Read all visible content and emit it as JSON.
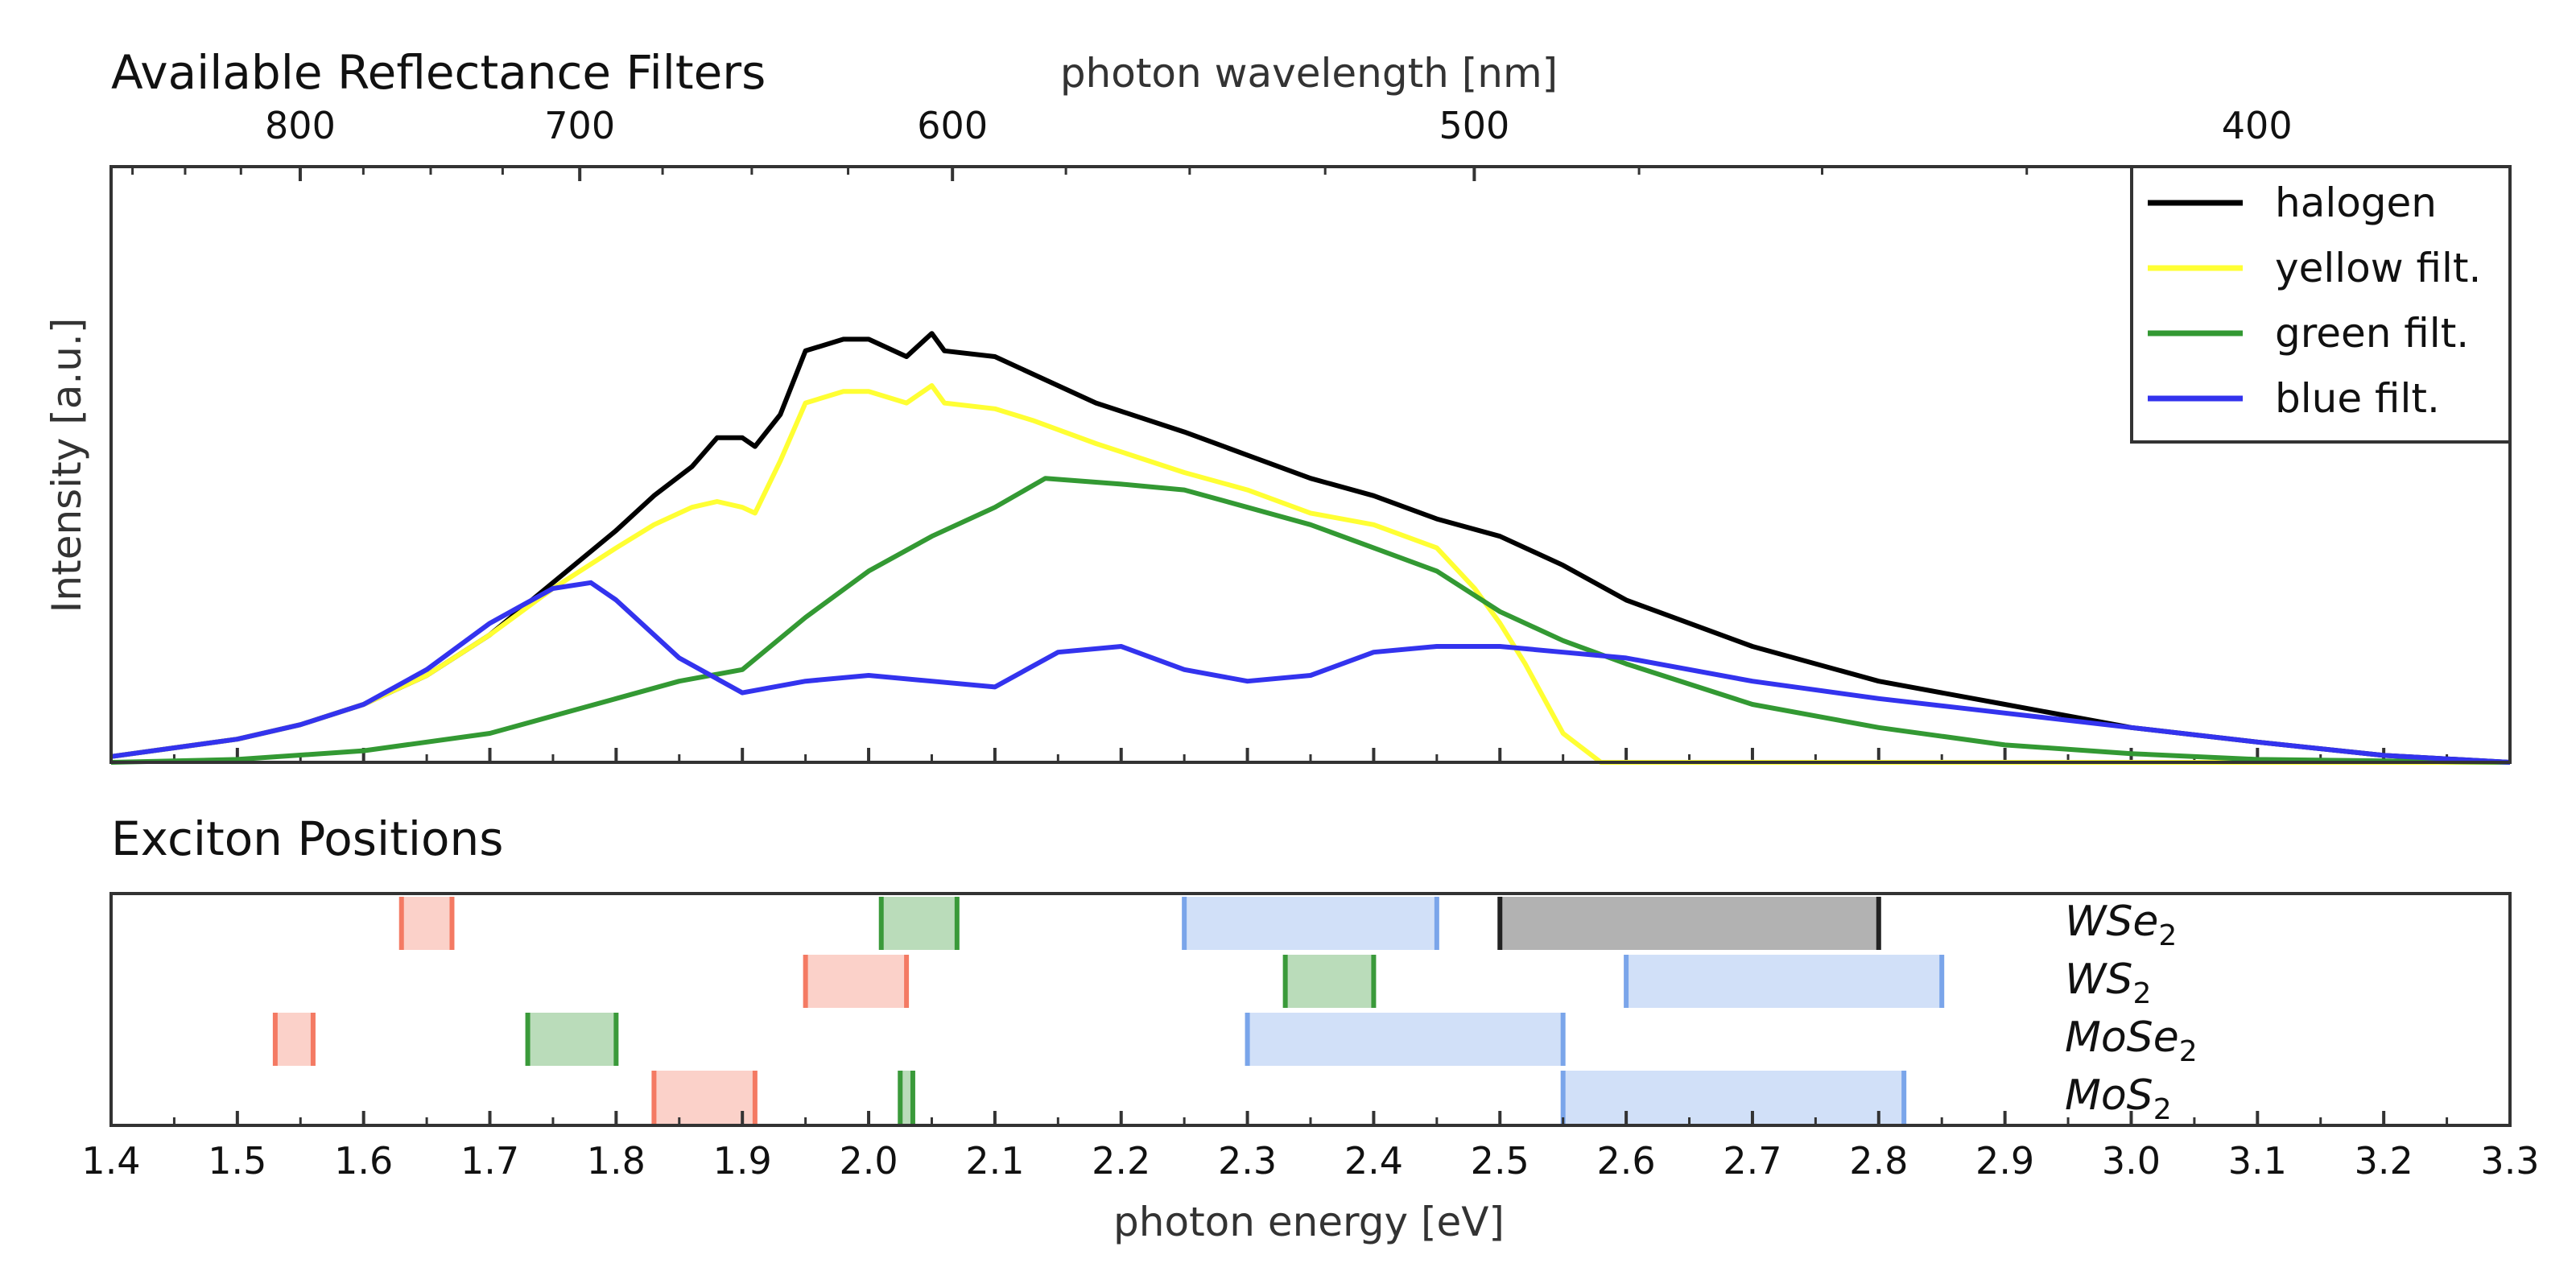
{
  "chart_data": [
    {
      "type": "line",
      "title": "Available Reflectance Filters",
      "xlabel": "photon energy [eV]",
      "ylabel": "Intensity [a.u.]",
      "top_xlabel": "photon wavelength [nm]",
      "top_ticks": [
        {
          "label": "800",
          "nm": 800
        },
        {
          "label": "700",
          "nm": 700
        },
        {
          "label": "600",
          "nm": 600
        },
        {
          "label": "500",
          "nm": 500
        },
        {
          "label": "400",
          "nm": 400
        }
      ],
      "xlim": [
        1.4,
        3.3
      ],
      "ylim": [
        0,
        1
      ],
      "legend_position": "top-right",
      "series": [
        {
          "name": "halogen",
          "color": "#000000",
          "points": [
            [
              1.4,
              0.01
            ],
            [
              1.45,
              0.025
            ],
            [
              1.5,
              0.04
            ],
            [
              1.55,
              0.065
            ],
            [
              1.6,
              0.1
            ],
            [
              1.65,
              0.15
            ],
            [
              1.7,
              0.22
            ],
            [
              1.75,
              0.31
            ],
            [
              1.8,
              0.4
            ],
            [
              1.83,
              0.46
            ],
            [
              1.86,
              0.51
            ],
            [
              1.88,
              0.56
            ],
            [
              1.9,
              0.56
            ],
            [
              1.91,
              0.545
            ],
            [
              1.93,
              0.6
            ],
            [
              1.95,
              0.71
            ],
            [
              1.98,
              0.73
            ],
            [
              2.0,
              0.73
            ],
            [
              2.03,
              0.7
            ],
            [
              2.05,
              0.74
            ],
            [
              2.06,
              0.71
            ],
            [
              2.1,
              0.7
            ],
            [
              2.13,
              0.67
            ],
            [
              2.18,
              0.62
            ],
            [
              2.25,
              0.57
            ],
            [
              2.3,
              0.53
            ],
            [
              2.35,
              0.49
            ],
            [
              2.4,
              0.46
            ],
            [
              2.45,
              0.42
            ],
            [
              2.5,
              0.39
            ],
            [
              2.55,
              0.34
            ],
            [
              2.6,
              0.28
            ],
            [
              2.7,
              0.2
            ],
            [
              2.8,
              0.14
            ],
            [
              2.9,
              0.1
            ],
            [
              3.0,
              0.06
            ],
            [
              3.1,
              0.035
            ],
            [
              3.2,
              0.012
            ],
            [
              3.3,
              0.0
            ]
          ]
        },
        {
          "name": "yellow filt.",
          "color": "#ffff33",
          "points": [
            [
              1.4,
              0.01
            ],
            [
              1.45,
              0.025
            ],
            [
              1.5,
              0.04
            ],
            [
              1.55,
              0.065
            ],
            [
              1.6,
              0.1
            ],
            [
              1.65,
              0.15
            ],
            [
              1.7,
              0.22
            ],
            [
              1.75,
              0.3
            ],
            [
              1.8,
              0.37
            ],
            [
              1.83,
              0.41
            ],
            [
              1.86,
              0.44
            ],
            [
              1.88,
              0.45
            ],
            [
              1.9,
              0.44
            ],
            [
              1.91,
              0.43
            ],
            [
              1.93,
              0.52
            ],
            [
              1.95,
              0.62
            ],
            [
              1.98,
              0.64
            ],
            [
              2.0,
              0.64
            ],
            [
              2.03,
              0.62
            ],
            [
              2.05,
              0.65
            ],
            [
              2.06,
              0.62
            ],
            [
              2.1,
              0.61
            ],
            [
              2.13,
              0.59
            ],
            [
              2.18,
              0.55
            ],
            [
              2.25,
              0.5
            ],
            [
              2.3,
              0.47
            ],
            [
              2.35,
              0.43
            ],
            [
              2.4,
              0.41
            ],
            [
              2.45,
              0.37
            ],
            [
              2.48,
              0.3
            ],
            [
              2.5,
              0.24
            ],
            [
              2.52,
              0.17
            ],
            [
              2.55,
              0.05
            ],
            [
              2.58,
              0.0
            ],
            [
              3.3,
              0.0
            ]
          ]
        },
        {
          "name": "green filt.",
          "color": "#339933",
          "points": [
            [
              1.4,
              0.0
            ],
            [
              1.5,
              0.005
            ],
            [
              1.6,
              0.02
            ],
            [
              1.7,
              0.05
            ],
            [
              1.8,
              0.11
            ],
            [
              1.85,
              0.14
            ],
            [
              1.9,
              0.16
            ],
            [
              1.95,
              0.25
            ],
            [
              2.0,
              0.33
            ],
            [
              2.05,
              0.39
            ],
            [
              2.1,
              0.44
            ],
            [
              2.14,
              0.49
            ],
            [
              2.2,
              0.48
            ],
            [
              2.25,
              0.47
            ],
            [
              2.3,
              0.44
            ],
            [
              2.35,
              0.41
            ],
            [
              2.4,
              0.37
            ],
            [
              2.45,
              0.33
            ],
            [
              2.5,
              0.26
            ],
            [
              2.55,
              0.21
            ],
            [
              2.6,
              0.17
            ],
            [
              2.7,
              0.1
            ],
            [
              2.8,
              0.06
            ],
            [
              2.9,
              0.03
            ],
            [
              3.0,
              0.015
            ],
            [
              3.1,
              0.005
            ],
            [
              3.3,
              0.0
            ]
          ]
        },
        {
          "name": "blue filt.",
          "color": "#3333ee",
          "points": [
            [
              1.4,
              0.01
            ],
            [
              1.45,
              0.025
            ],
            [
              1.5,
              0.04
            ],
            [
              1.55,
              0.065
            ],
            [
              1.6,
              0.1
            ],
            [
              1.65,
              0.16
            ],
            [
              1.7,
              0.24
            ],
            [
              1.75,
              0.3
            ],
            [
              1.78,
              0.31
            ],
            [
              1.8,
              0.28
            ],
            [
              1.85,
              0.18
            ],
            [
              1.9,
              0.12
            ],
            [
              1.95,
              0.14
            ],
            [
              2.0,
              0.15
            ],
            [
              2.05,
              0.14
            ],
            [
              2.1,
              0.13
            ],
            [
              2.15,
              0.19
            ],
            [
              2.2,
              0.2
            ],
            [
              2.25,
              0.16
            ],
            [
              2.3,
              0.14
            ],
            [
              2.35,
              0.15
            ],
            [
              2.4,
              0.19
            ],
            [
              2.45,
              0.2
            ],
            [
              2.5,
              0.2
            ],
            [
              2.55,
              0.19
            ],
            [
              2.6,
              0.18
            ],
            [
              2.7,
              0.14
            ],
            [
              2.8,
              0.11
            ],
            [
              2.9,
              0.085
            ],
            [
              3.0,
              0.06
            ],
            [
              3.1,
              0.035
            ],
            [
              3.2,
              0.012
            ],
            [
              3.3,
              0.0
            ]
          ]
        }
      ]
    },
    {
      "type": "range",
      "title": "Exciton Positions",
      "xlabel": "photon energy [eV]",
      "xlim": [
        1.4,
        3.3
      ],
      "x_ticks": [
        "1.4",
        "1.5",
        "1.6",
        "1.7",
        "1.8",
        "1.9",
        "2.0",
        "2.1",
        "2.2",
        "2.3",
        "2.4",
        "2.5",
        "2.6",
        "2.7",
        "2.8",
        "2.9",
        "3.0",
        "3.1",
        "3.2",
        "3.3"
      ],
      "materials": [
        {
          "label": "WSe",
          "sub": "2"
        },
        {
          "label": "WS",
          "sub": "2"
        },
        {
          "label": "MoSe",
          "sub": "2"
        },
        {
          "label": "MoS",
          "sub": "2"
        }
      ],
      "colors": {
        "red": "#f47a63",
        "green": "#3a9a3a",
        "blue": "#7aa5ea",
        "black": "#222222"
      },
      "ranges": [
        {
          "row": 0,
          "color": "red",
          "x0": 1.63,
          "x1": 1.67
        },
        {
          "row": 0,
          "color": "green",
          "x0": 2.01,
          "x1": 2.07
        },
        {
          "row": 0,
          "color": "blue",
          "x0": 2.25,
          "x1": 2.45
        },
        {
          "row": 0,
          "color": "black",
          "x0": 2.5,
          "x1": 2.8
        },
        {
          "row": 1,
          "color": "red",
          "x0": 1.95,
          "x1": 2.03
        },
        {
          "row": 1,
          "color": "green",
          "x0": 2.33,
          "x1": 2.4
        },
        {
          "row": 1,
          "color": "blue",
          "x0": 2.6,
          "x1": 2.85
        },
        {
          "row": 2,
          "color": "red",
          "x0": 1.53,
          "x1": 1.56
        },
        {
          "row": 2,
          "color": "green",
          "x0": 1.73,
          "x1": 1.8
        },
        {
          "row": 2,
          "color": "blue",
          "x0": 2.3,
          "x1": 2.55
        },
        {
          "row": 3,
          "color": "red",
          "x0": 1.83,
          "x1": 1.91
        },
        {
          "row": 3,
          "color": "green",
          "x0": 2.025,
          "x1": 2.035
        },
        {
          "row": 3,
          "color": "blue",
          "x0": 2.55,
          "x1": 2.82
        }
      ]
    }
  ]
}
